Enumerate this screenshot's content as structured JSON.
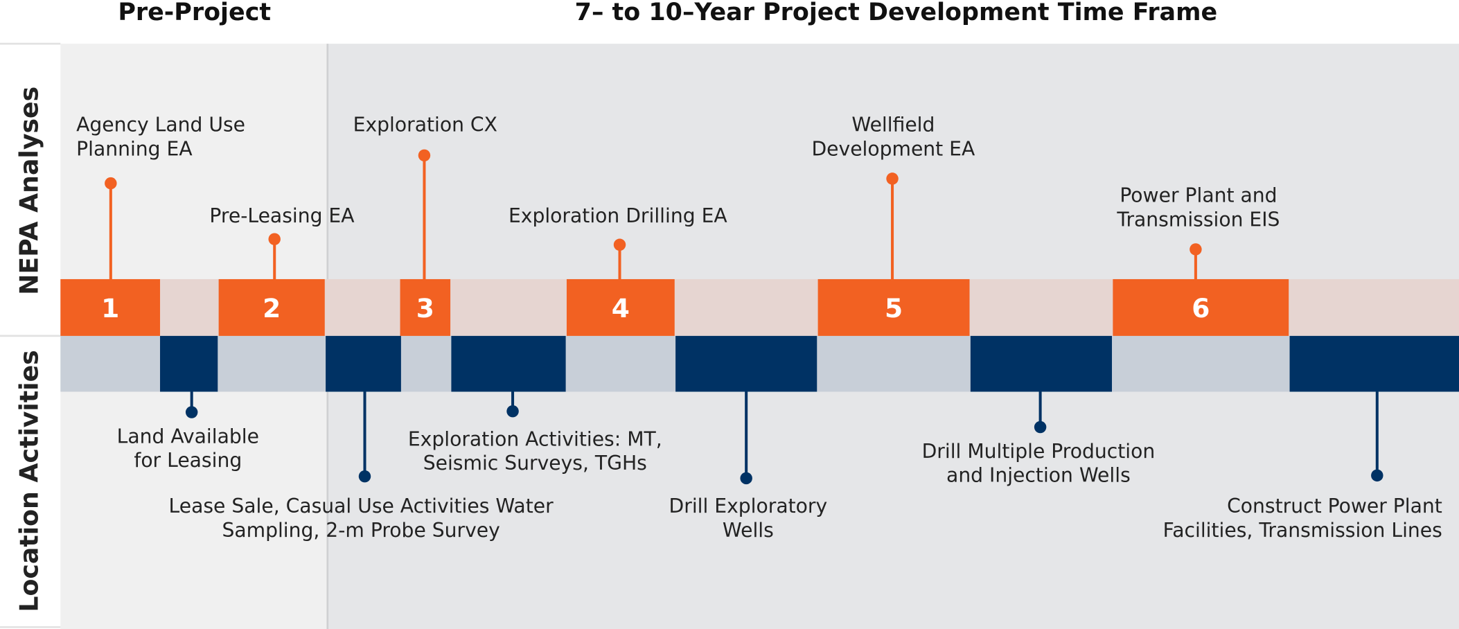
{
  "header": {
    "pre_project": "Pre-Project",
    "time_frame": "7– to 10–Year Project Development Time Frame"
  },
  "side": {
    "nepa": "NEPA Analyses",
    "location": "Location Activities"
  },
  "nepa": [
    {
      "number": 1,
      "lines": [
        "Agency Land Use",
        "Planning EA"
      ]
    },
    {
      "number": 2,
      "lines": [
        "Pre-Leasing EA"
      ]
    },
    {
      "number": 3,
      "lines": [
        "Exploration CX"
      ]
    },
    {
      "number": 4,
      "lines": [
        "Exploration Drilling EA"
      ]
    },
    {
      "number": 5,
      "lines": [
        "Wellfield",
        "Development EA"
      ]
    },
    {
      "number": 6,
      "lines": [
        "Power Plant and",
        "Transmission EIS"
      ]
    }
  ],
  "activities": [
    {
      "lines": [
        "Land Available",
        "for Leasing"
      ]
    },
    {
      "lines": [
        "Lease Sale, Casual Use Activities Water",
        "Sampling, 2-m Probe Survey"
      ]
    },
    {
      "lines": [
        "Exploration Activities: MT,",
        "Seismic Surveys, TGHs"
      ]
    },
    {
      "lines": [
        "Drill Exploratory",
        "Wells"
      ]
    },
    {
      "lines": [
        "Drill Multiple Production",
        "and Injection Wells"
      ]
    },
    {
      "lines": [
        "Construct Power Plant",
        "Facilities, Transmission Lines"
      ]
    }
  ]
}
